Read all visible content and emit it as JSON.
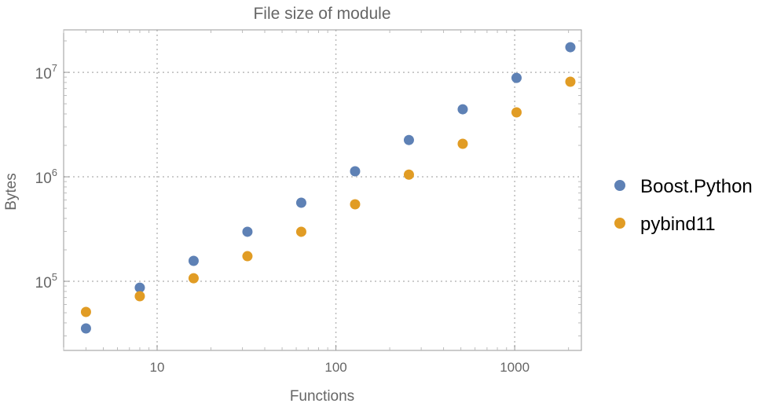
{
  "chart_data": {
    "type": "scatter",
    "title": "File size of module",
    "xlabel": "Functions",
    "ylabel": "Bytes",
    "xscale": "log",
    "yscale": "log",
    "xlim": [
      3.0,
      2360
    ],
    "ylim": [
      21800,
      25500000
    ],
    "xticks": [
      {
        "v": 10,
        "label": "10"
      },
      {
        "v": 100,
        "label": "100"
      },
      {
        "v": 1000,
        "label": "1000"
      }
    ],
    "yticks": [
      {
        "v": 100000,
        "base": "10",
        "exp": "5"
      },
      {
        "v": 1000000,
        "base": "10",
        "exp": "6"
      },
      {
        "v": 10000000,
        "base": "10",
        "exp": "7"
      }
    ],
    "grid": true,
    "legend_placement": "right",
    "x": [
      4,
      8,
      16,
      32,
      64,
      128,
      256,
      512,
      1024,
      2048
    ],
    "series": [
      {
        "name": "Boost.Python",
        "color": "#5E81B5",
        "values": [
          35400,
          87000,
          157000,
          298000,
          565000,
          1130000,
          2250000,
          4430000,
          8850000,
          17400000
        ]
      },
      {
        "name": "pybind11",
        "color": "#E19C24",
        "values": [
          50900,
          72000,
          107000,
          174000,
          298000,
          546000,
          1050000,
          2070000,
          4140000,
          8130000
        ]
      }
    ]
  }
}
